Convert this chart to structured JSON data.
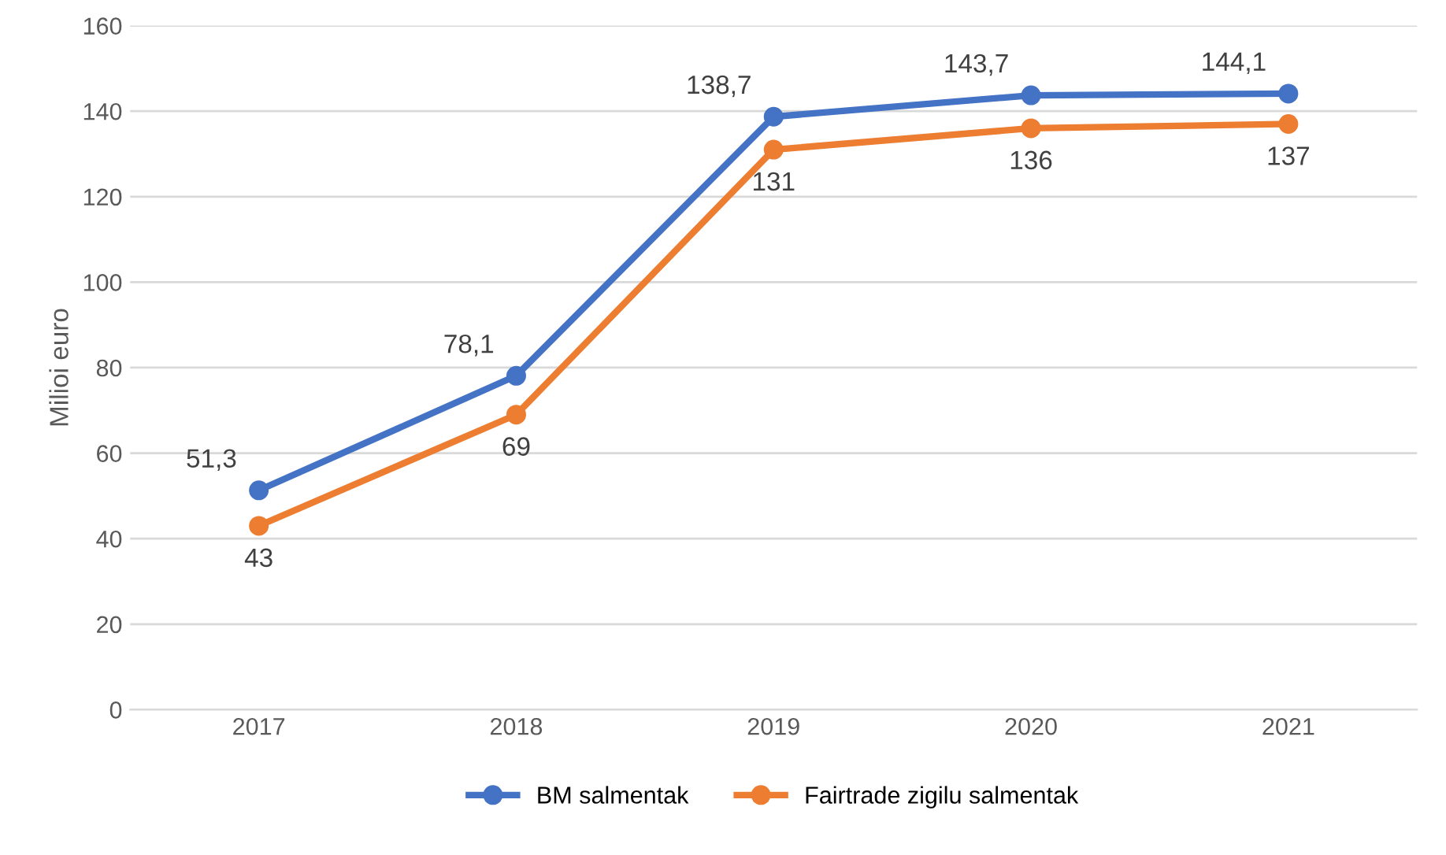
{
  "chart_data": {
    "type": "line",
    "ylabel": "Milioi euro",
    "categories": [
      "2017",
      "2018",
      "2019",
      "2020",
      "2021"
    ],
    "series": [
      {
        "name": "BM salmentak",
        "color": "#4472c4",
        "values": [
          51.3,
          78.1,
          138.7,
          143.7,
          144.1
        ],
        "value_labels": [
          "51,3",
          "78,1",
          "138,7",
          "143,7",
          "144,1"
        ]
      },
      {
        "name": "Fairtrade zigilu salmentak",
        "color": "#ed7d31",
        "values": [
          43,
          69,
          131,
          136,
          137
        ],
        "value_labels": [
          "43",
          "69",
          "131",
          "136",
          "137"
        ]
      }
    ],
    "ylim": [
      0,
      160
    ],
    "yticks": [
      0,
      20,
      40,
      60,
      80,
      100,
      120,
      140,
      160
    ],
    "grid": "y",
    "legend": "bottom",
    "marker": "circle",
    "line_style": "solid"
  }
}
